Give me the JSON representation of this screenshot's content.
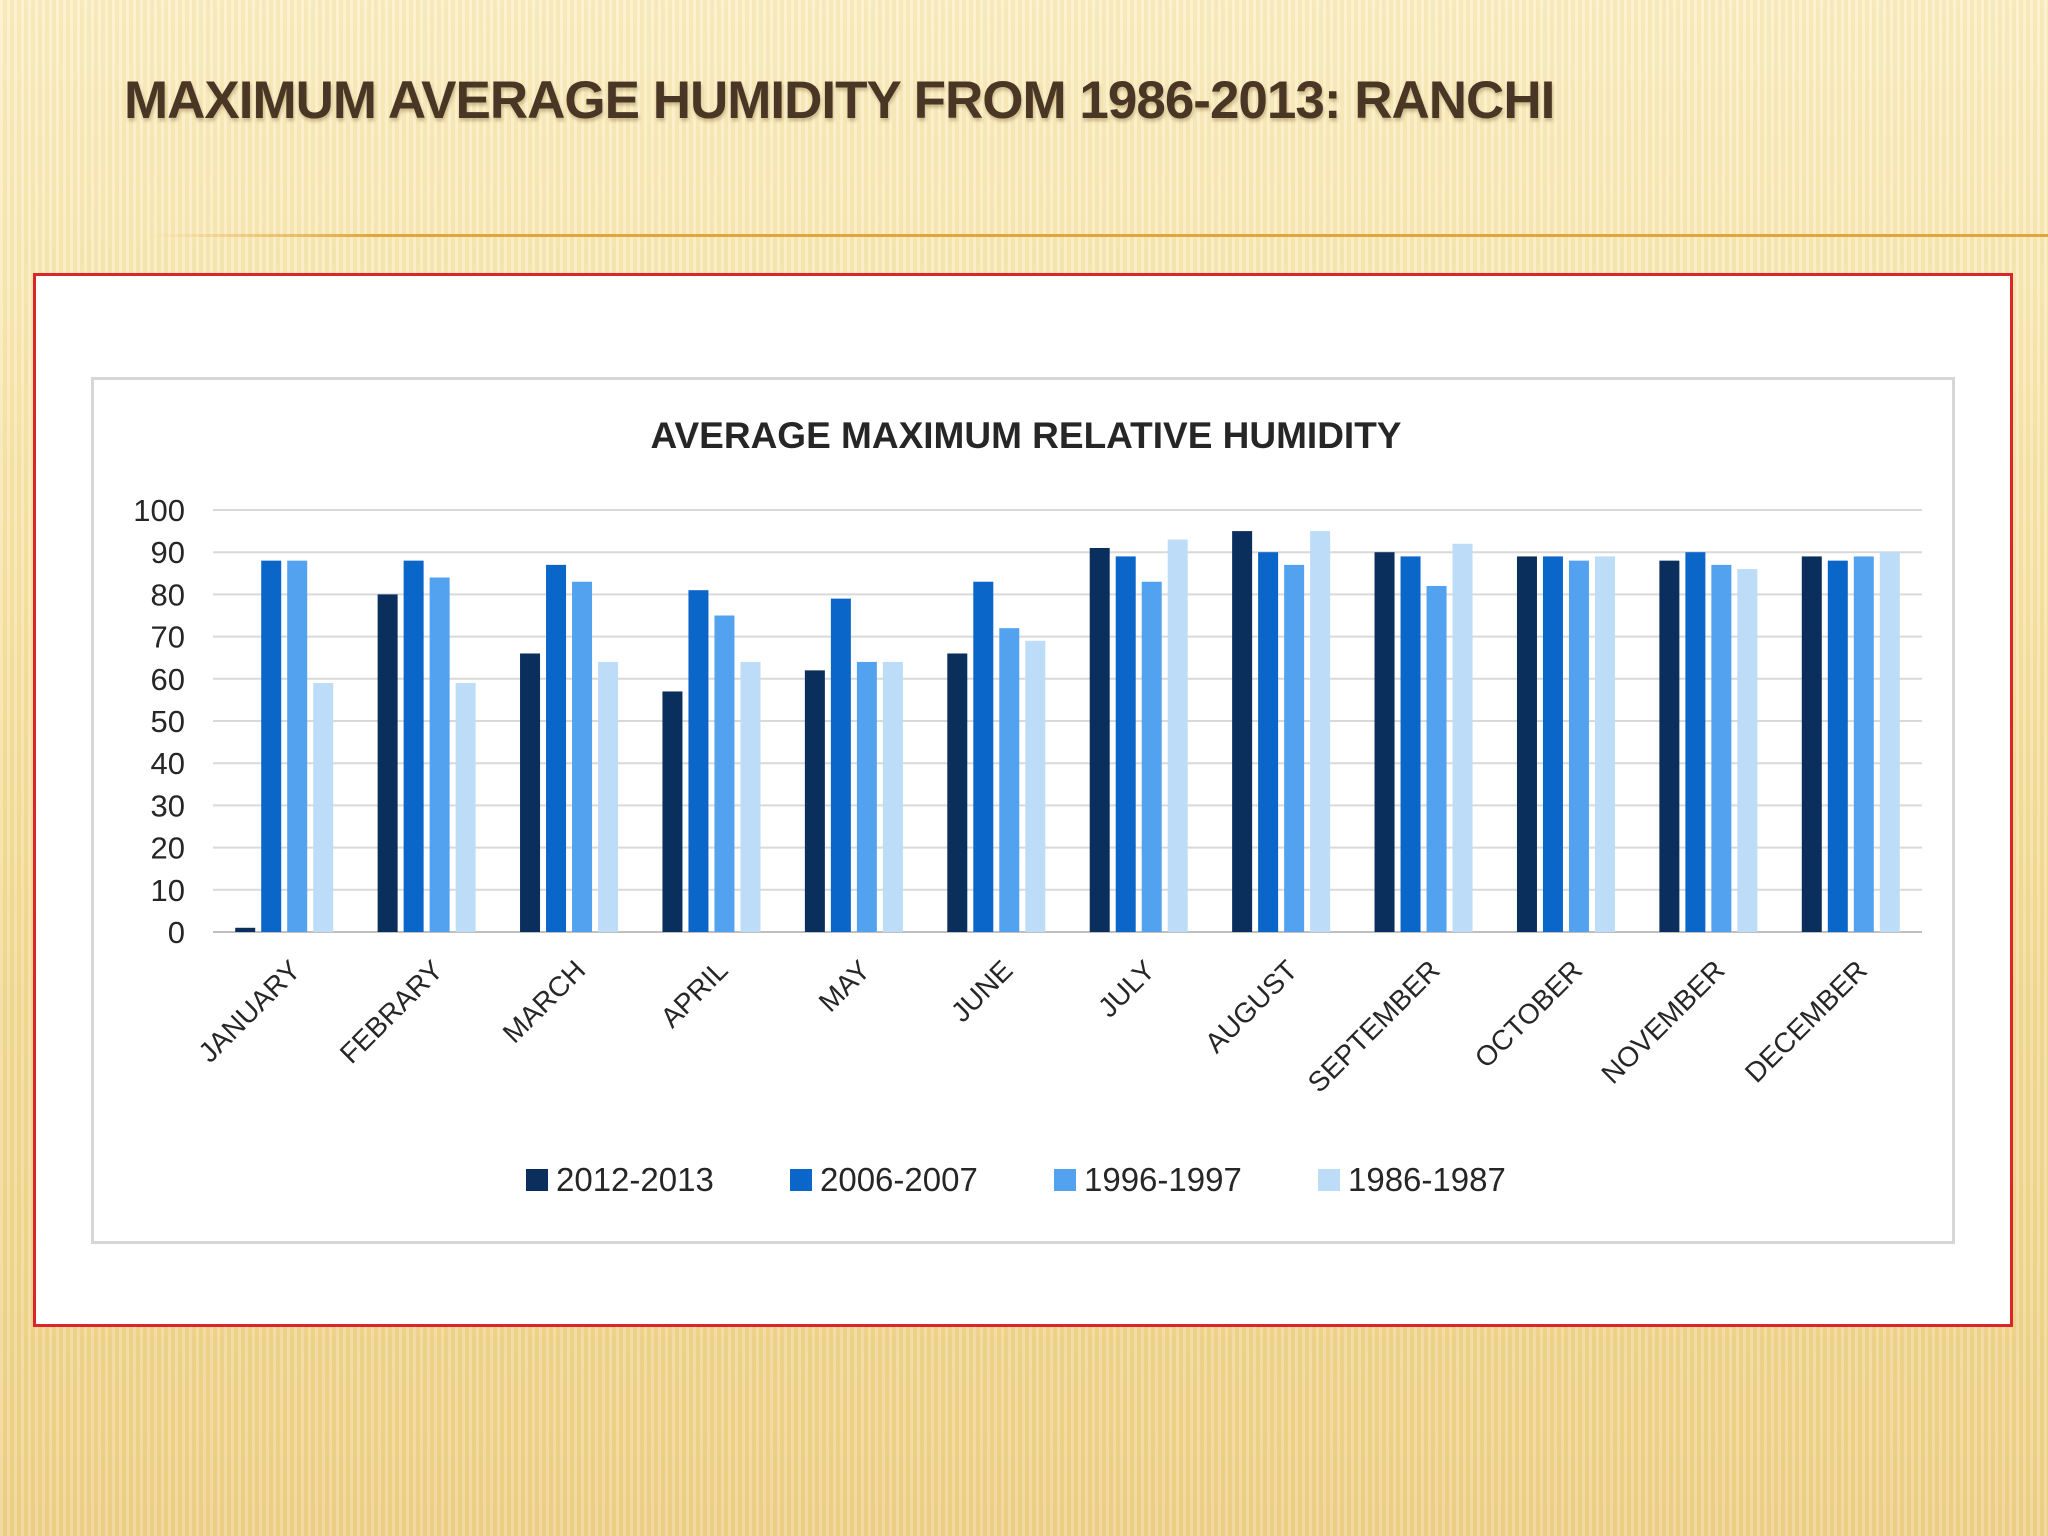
{
  "slide": {
    "title": "MAXIMUM AVERAGE HUMIDITY FROM 1986-2013: RANCHI"
  },
  "colors": {
    "title_text": "#4a3624",
    "frame_border": "#d9262a",
    "rule": "#e0a53c"
  },
  "chart_data": {
    "type": "bar",
    "title": "AVERAGE MAXIMUM RELATIVE HUMIDITY",
    "xlabel": "",
    "ylabel": "",
    "ylim": [
      0,
      100
    ],
    "yticks": [
      0,
      10,
      20,
      30,
      40,
      50,
      60,
      70,
      80,
      90,
      100
    ],
    "grid": true,
    "legend_position": "bottom",
    "categories": [
      "JANUARY",
      "FEBRARY",
      "MARCH",
      "APRIL",
      "MAY",
      "JUNE",
      "JULY",
      "AUGUST",
      "SEPTEMBER",
      "OCTOBER",
      "NOVEMBER",
      "DECEMBER"
    ],
    "series": [
      {
        "name": "2012-2013",
        "color": "#0b2f5c",
        "values": [
          1,
          80,
          66,
          57,
          62,
          66,
          91,
          95,
          90,
          89,
          88,
          89
        ]
      },
      {
        "name": "2006-2007",
        "color": "#0a66c8",
        "values": [
          88,
          88,
          87,
          81,
          79,
          83,
          89,
          90,
          89,
          89,
          90,
          88
        ]
      },
      {
        "name": "1996-1997",
        "color": "#52a2f0",
        "values": [
          88,
          84,
          83,
          75,
          64,
          72,
          83,
          87,
          82,
          88,
          87,
          89
        ]
      },
      {
        "name": "1986-1987",
        "color": "#bcdcf8",
        "values": [
          59,
          59,
          64,
          64,
          64,
          69,
          93,
          95,
          92,
          89,
          86,
          90
        ]
      }
    ]
  }
}
